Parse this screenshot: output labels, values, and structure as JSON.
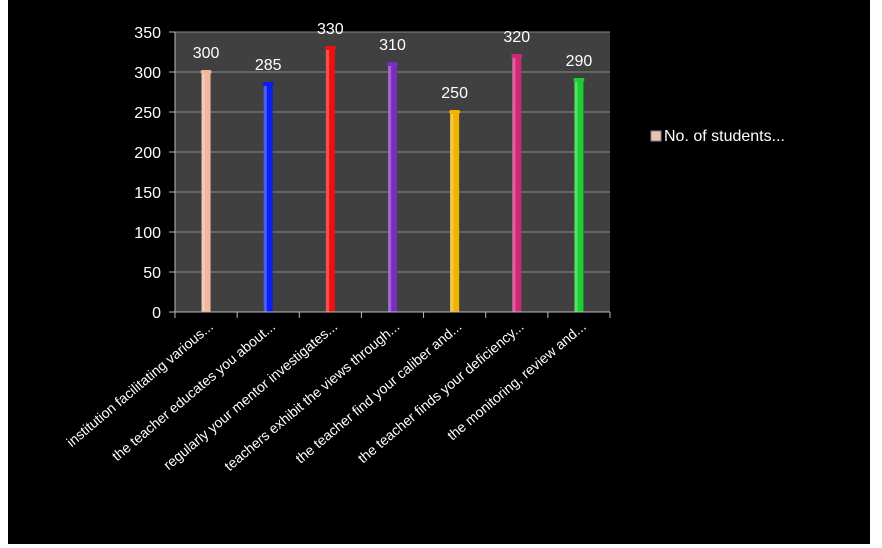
{
  "chart_data": {
    "type": "bar",
    "categories": [
      "institution facilitating various...",
      "the teacher educates you about...",
      "regularly your mentor investigates...",
      "teachers exhibit the views through...",
      "the teacher find your caliber and...",
      "the teacher finds your deficiency...",
      "the monitoring, review  and..."
    ],
    "series": [
      {
        "name": "No. of students...",
        "values": [
          300,
          285,
          330,
          310,
          250,
          320,
          290
        ],
        "colors": [
          "#f0b8a0",
          "#0a1ef0",
          "#f01010",
          "#7a2cc0",
          "#f0b400",
          "#d02878",
          "#18d030"
        ]
      }
    ],
    "y_ticks": [
      "0",
      "50",
      "100",
      "150",
      "200",
      "250",
      "300",
      "350"
    ],
    "ylim": [
      0,
      350
    ],
    "grid": true,
    "legend_position": "right",
    "background": "#000000",
    "plot_background": "#404040"
  }
}
